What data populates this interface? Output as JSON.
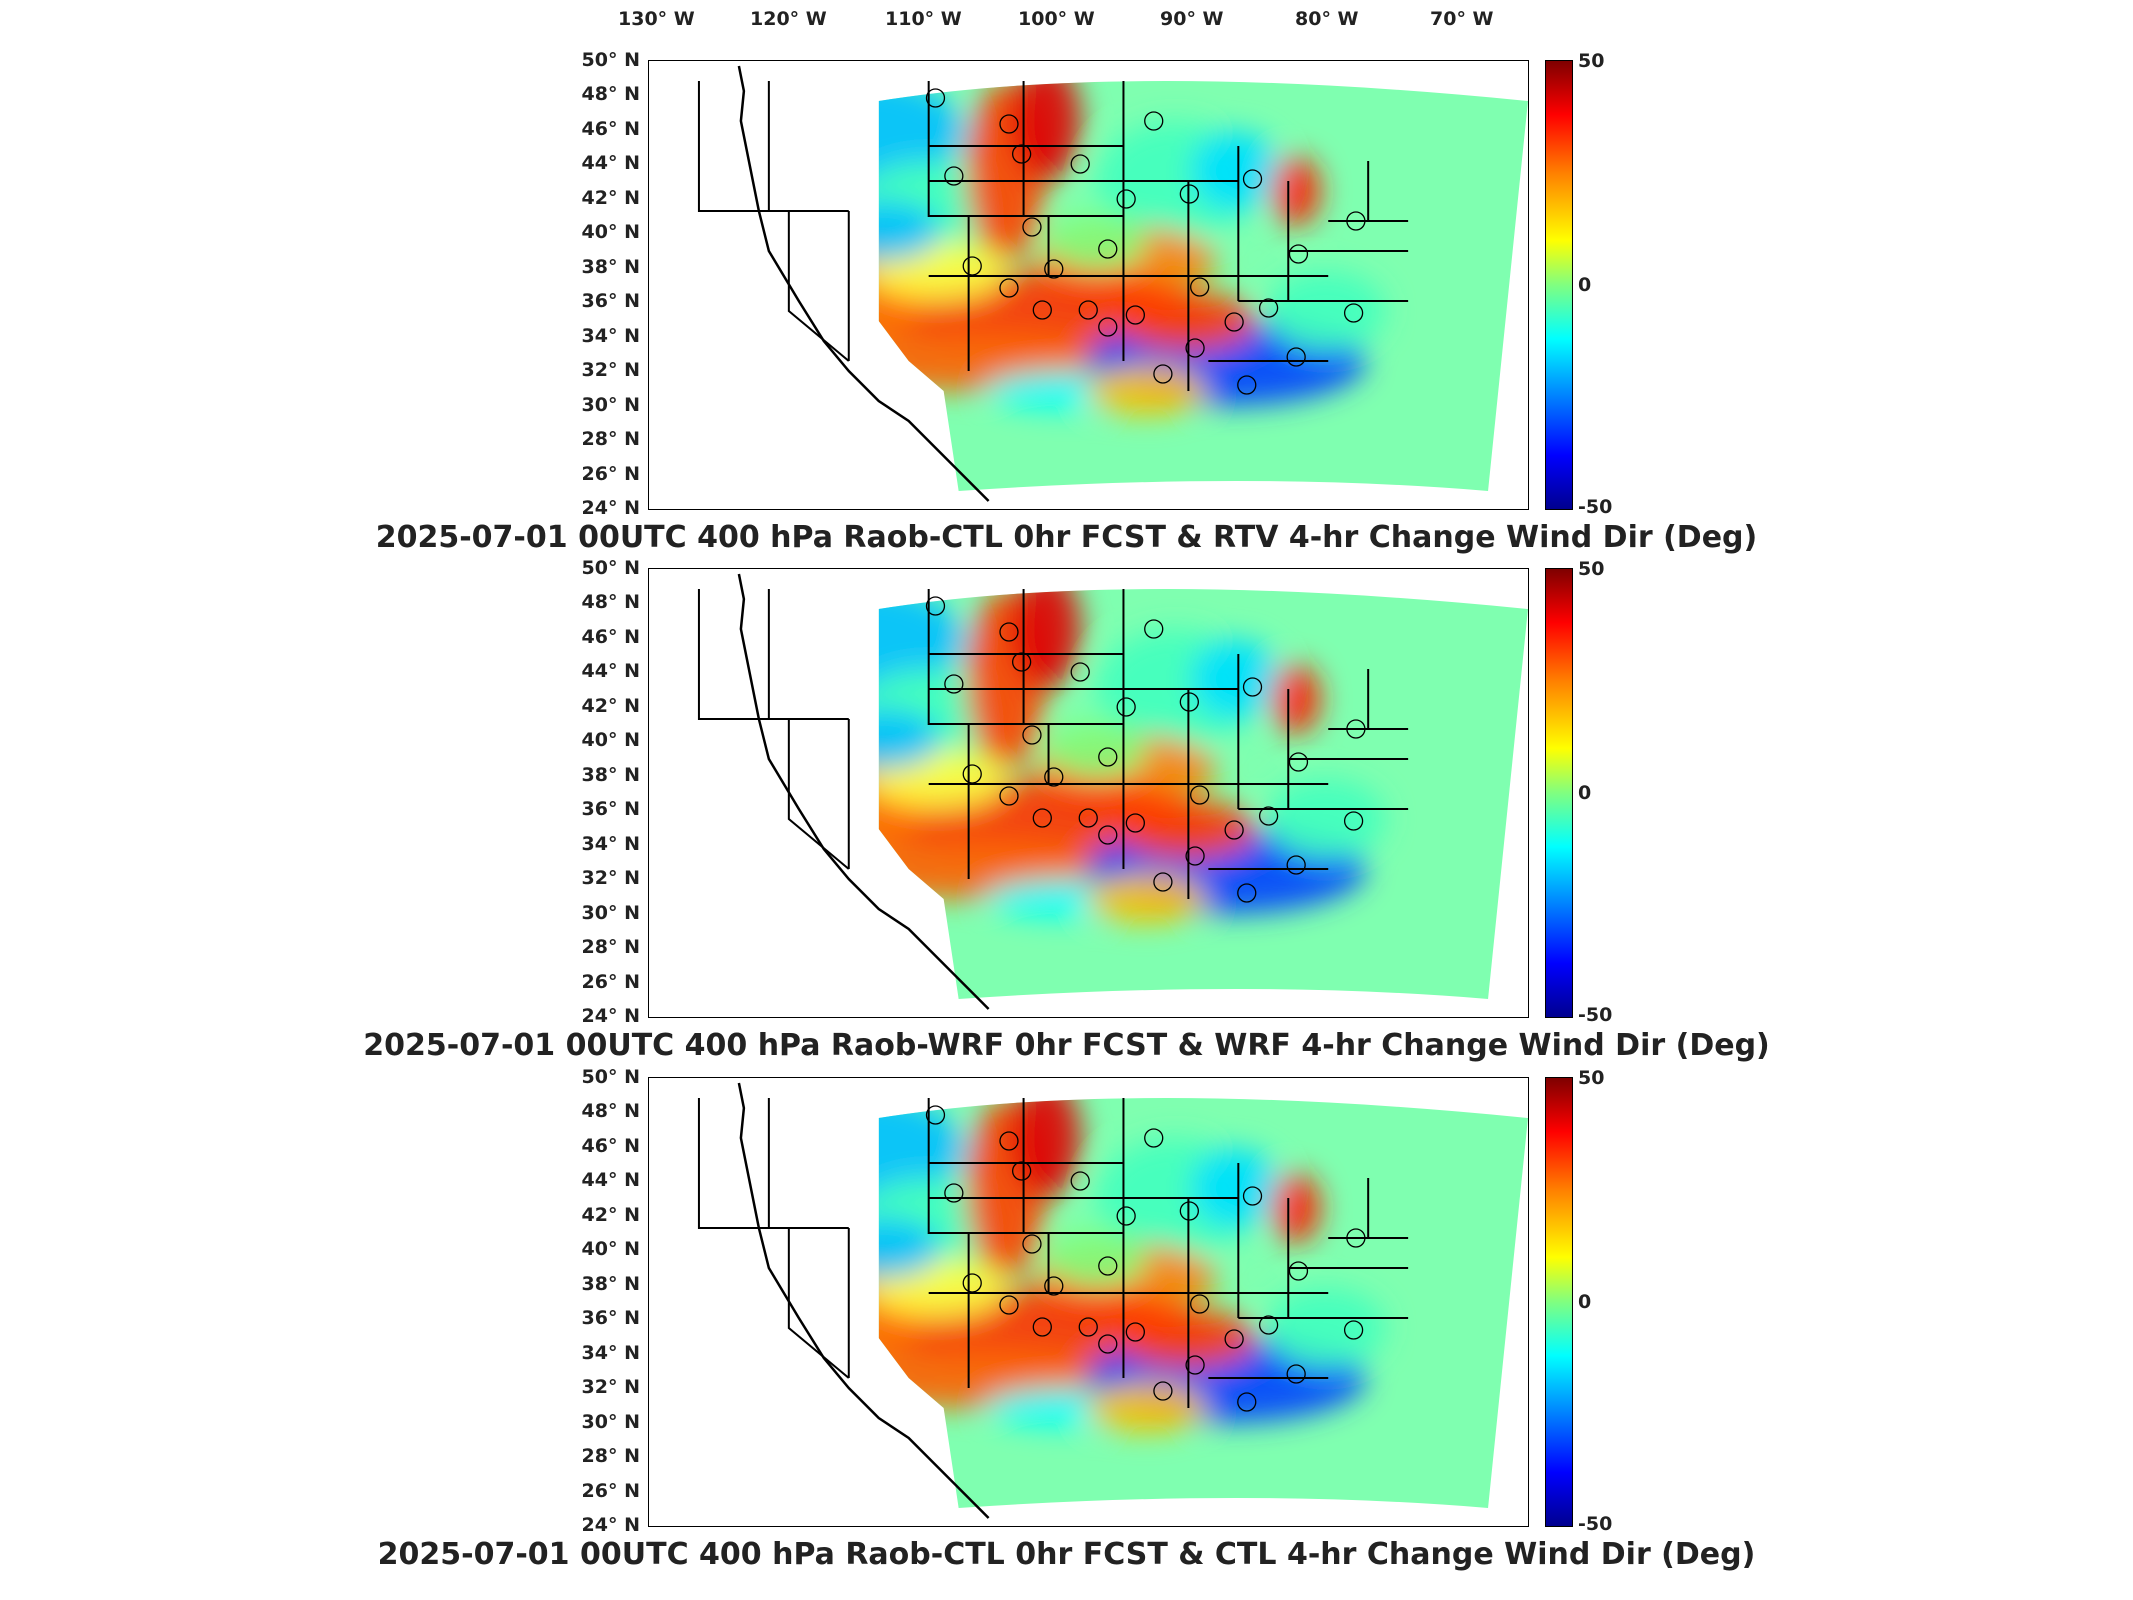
{
  "lon_labels": [
    "130° W",
    "120° W",
    "110° W",
    "100° W",
    "90° W",
    "80° W",
    "70° W"
  ],
  "lat_labels": [
    "50° N",
    "48° N",
    "46° N",
    "44° N",
    "42° N",
    "40° N",
    "38° N",
    "36° N",
    "34° N",
    "32° N",
    "30° N",
    "28° N",
    "26° N",
    "24° N"
  ],
  "colorbar": {
    "max": "50",
    "mid": "0",
    "min": "-50",
    "colormap": "jet"
  },
  "panels": [
    {
      "title": "2025-07-01 00UTC 400 hPa Raob-CTL 0hr FCST & RTV 4-hr Change Wind Dir (Deg)"
    },
    {
      "title": "2025-07-01 00UTC 400 hPa Raob-WRF 0hr FCST & WRF 4-hr Change Wind Dir (Deg)"
    },
    {
      "title": "2025-07-01 00UTC 400 hPa Raob-CTL 0hr FCST & CTL 4-hr Change Wind Dir (Deg)"
    }
  ],
  "colors": {
    "background": "#ffffff",
    "border": "#000000",
    "title": "#222222"
  }
}
